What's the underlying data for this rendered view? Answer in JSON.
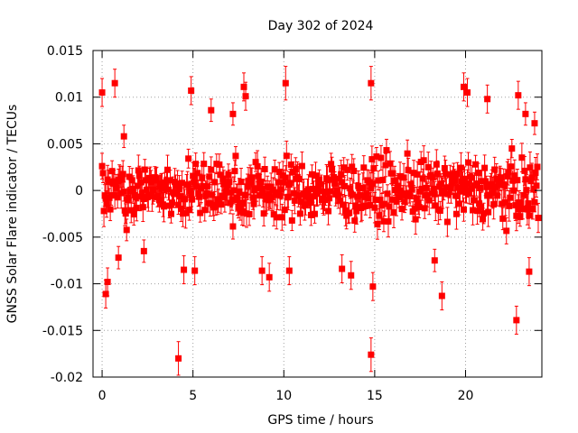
{
  "chart_data": {
    "type": "scatter",
    "title": "Day 302 of 2024",
    "xlabel": "GPS time / hours",
    "ylabel": "GNSS Solar Flare indicator / TECUs",
    "xlim": [
      -0.5,
      24.2
    ],
    "ylim": [
      -0.02,
      0.015
    ],
    "x_ticks": [
      0,
      5,
      10,
      15,
      20
    ],
    "x_tick_labels": [
      "0",
      "5",
      "10",
      "15",
      "20"
    ],
    "y_ticks": [
      -0.02,
      -0.015,
      -0.01,
      -0.005,
      0,
      0.005,
      0.01,
      0.015
    ],
    "y_tick_labels": [
      "-0.02",
      "-0.015",
      "-0.01",
      "-0.005",
      "0",
      "0.005",
      "0.01",
      "0.015"
    ],
    "grid": true,
    "marker_color": "#ff0000",
    "axis_color": "#000000",
    "grid_color": "#a0a0a0",
    "dense_band": {
      "x_start": 0.0,
      "x_end": 24.0,
      "step_hours": 0.05,
      "typical_range": [
        -0.004,
        0.004
      ],
      "error_bar": 0.0012,
      "note": "approximately 480 dense observations; represented by a deterministic pseudo-random band"
    },
    "outliers": [
      {
        "x": 0.0,
        "y": 0.0105,
        "err": 0.0015
      },
      {
        "x": 0.2,
        "y": -0.0111,
        "err": 0.0015
      },
      {
        "x": 0.3,
        "y": -0.0098,
        "err": 0.0015
      },
      {
        "x": 0.7,
        "y": 0.0115,
        "err": 0.0015
      },
      {
        "x": 0.9,
        "y": -0.0072,
        "err": 0.0012
      },
      {
        "x": 1.2,
        "y": 0.0058,
        "err": 0.0012
      },
      {
        "x": 2.3,
        "y": -0.0065,
        "err": 0.0012
      },
      {
        "x": 4.2,
        "y": -0.018,
        "err": 0.0018
      },
      {
        "x": 4.5,
        "y": -0.0085,
        "err": 0.0015
      },
      {
        "x": 4.9,
        "y": 0.0107,
        "err": 0.0015
      },
      {
        "x": 5.1,
        "y": -0.0086,
        "err": 0.0015
      },
      {
        "x": 6.0,
        "y": 0.0086,
        "err": 0.0012
      },
      {
        "x": 7.2,
        "y": 0.0082,
        "err": 0.0012
      },
      {
        "x": 7.8,
        "y": 0.0111,
        "err": 0.0015
      },
      {
        "x": 7.9,
        "y": 0.0101,
        "err": 0.0015
      },
      {
        "x": 8.8,
        "y": -0.0086,
        "err": 0.0015
      },
      {
        "x": 9.2,
        "y": -0.0093,
        "err": 0.0015
      },
      {
        "x": 10.1,
        "y": 0.0115,
        "err": 0.0018
      },
      {
        "x": 10.3,
        "y": -0.0086,
        "err": 0.0015
      },
      {
        "x": 13.2,
        "y": -0.0084,
        "err": 0.0015
      },
      {
        "x": 13.7,
        "y": -0.0091,
        "err": 0.0015
      },
      {
        "x": 14.8,
        "y": 0.0115,
        "err": 0.0018
      },
      {
        "x": 14.9,
        "y": -0.0103,
        "err": 0.0015
      },
      {
        "x": 14.8,
        "y": -0.0176,
        "err": 0.0018
      },
      {
        "x": 18.3,
        "y": -0.0075,
        "err": 0.0012
      },
      {
        "x": 18.7,
        "y": -0.0113,
        "err": 0.0015
      },
      {
        "x": 19.9,
        "y": 0.0111,
        "err": 0.0015
      },
      {
        "x": 20.1,
        "y": 0.0105,
        "err": 0.0015
      },
      {
        "x": 21.2,
        "y": 0.0098,
        "err": 0.0015
      },
      {
        "x": 22.9,
        "y": 0.0102,
        "err": 0.0015
      },
      {
        "x": 22.8,
        "y": -0.0139,
        "err": 0.0015
      },
      {
        "x": 23.5,
        "y": -0.0087,
        "err": 0.0015
      },
      {
        "x": 23.3,
        "y": 0.0082,
        "err": 0.0012
      },
      {
        "x": 23.8,
        "y": 0.0072,
        "err": 0.0012
      }
    ]
  }
}
